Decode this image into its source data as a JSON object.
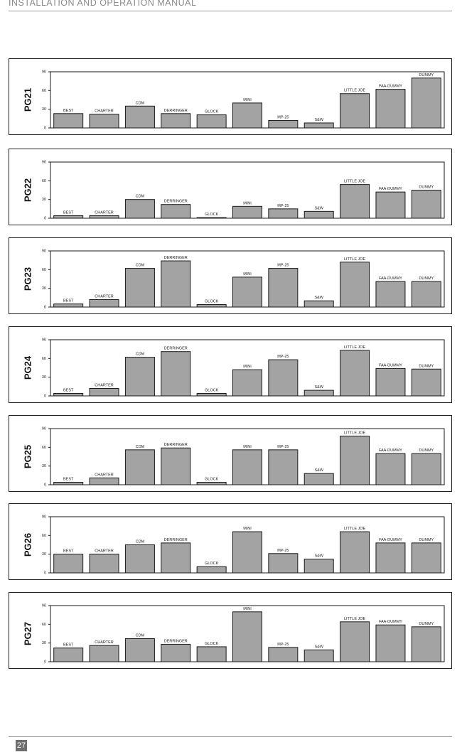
{
  "header": {
    "title": "INSTALLATION AND OPERATION MANUAL"
  },
  "footer": {
    "page_number": "27"
  },
  "colors": {
    "bar_fill": "#a3a3a3",
    "bar_stroke": "#1a1a1a",
    "frame": "#222222",
    "rule": "#9a9a9a"
  },
  "chart_data": [
    {
      "type": "bar",
      "ylabel": "PG21",
      "ylim": [
        0,
        90
      ],
      "yticks": [
        "0",
        "30",
        "60",
        "90"
      ],
      "grid": false,
      "categories": [
        "BEST",
        "CHARTER",
        "CDM",
        "DERRINGER",
        "GLOCK",
        "MINI",
        "MP-25",
        "S&W",
        "LITTLE JOE",
        "FAA-DUMMY",
        "DUMMY"
      ],
      "values": [
        23,
        22,
        35,
        23,
        21,
        40,
        12,
        8,
        55,
        62,
        80
      ]
    },
    {
      "type": "bar",
      "ylabel": "PG22",
      "ylim": [
        0,
        90
      ],
      "yticks": [
        "0",
        "30",
        "60",
        "90"
      ],
      "grid": false,
      "categories": [
        "BEST",
        "CHARTER",
        "CDM",
        "DERRINGER",
        "GLOCK",
        "MINI",
        "MP-25",
        "S&W",
        "LITTLE JOE",
        "FAA-DUMMY",
        "DUMMY"
      ],
      "values": [
        4,
        4,
        30,
        22,
        1,
        19,
        15,
        11,
        54,
        42,
        45
      ]
    },
    {
      "type": "bar",
      "ylabel": "PG23",
      "ylim": [
        0,
        90
      ],
      "yticks": [
        "0",
        "30",
        "60",
        "90"
      ],
      "grid": false,
      "categories": [
        "BEST",
        "CHARTER",
        "CDM",
        "DERRINGER",
        "GLOCK",
        "MINI",
        "MP-25",
        "S&W",
        "LITTLE JOE",
        "FAA-DUMMY",
        "DUMMY"
      ],
      "values": [
        5,
        12,
        62,
        74,
        4,
        48,
        62,
        10,
        72,
        41,
        41
      ]
    },
    {
      "type": "bar",
      "ylabel": "PG24",
      "ylim": [
        0,
        90
      ],
      "yticks": [
        "0",
        "30",
        "60",
        "90"
      ],
      "grid": false,
      "categories": [
        "BEST",
        "CHARTER",
        "CDM",
        "DERRINGER",
        "GLOCK",
        "MINI",
        "MP-25",
        "S&W",
        "LITTLE JOE",
        "FAA-DUMMY",
        "DUMMY"
      ],
      "values": [
        4,
        12,
        62,
        71,
        4,
        42,
        58,
        9,
        73,
        44,
        43
      ]
    },
    {
      "type": "bar",
      "ylabel": "PG25",
      "ylim": [
        0,
        90
      ],
      "yticks": [
        "0",
        "30",
        "60",
        "90"
      ],
      "grid": false,
      "categories": [
        "BEST",
        "CHARTER",
        "CDM",
        "DERRINGER",
        "GLOCK",
        "MINI",
        "MP-25",
        "S&W",
        "LITTLE JOE",
        "FAA-DUMMY",
        "DUMMY"
      ],
      "values": [
        4,
        11,
        56,
        59,
        4,
        56,
        56,
        18,
        78,
        50,
        50
      ]
    },
    {
      "type": "bar",
      "ylabel": "PG26",
      "ylim": [
        0,
        90
      ],
      "yticks": [
        "0",
        "30",
        "60",
        "90"
      ],
      "grid": false,
      "categories": [
        "BEST",
        "CHARTER",
        "CDM",
        "DERRINGER",
        "GLOCK",
        "MINI",
        "MP-25",
        "S&W",
        "LITTLE JOE",
        "FAA-DUMMY",
        "DUMMY"
      ],
      "values": [
        30,
        30,
        45,
        48,
        10,
        66,
        31,
        22,
        66,
        48,
        48
      ]
    },
    {
      "type": "bar",
      "ylabel": "PG27",
      "ylim": [
        0,
        90
      ],
      "yticks": [
        "0",
        "30",
        "60",
        "90"
      ],
      "grid": false,
      "categories": [
        "BEST",
        "CHARTER",
        "CDM",
        "DERRINGER",
        "GLOCK",
        "MINI",
        "MP-25",
        "S&W",
        "LITTLE JOE",
        "FAA-DUMMY",
        "DUMMY"
      ],
      "values": [
        22,
        26,
        37,
        28,
        24,
        80,
        23,
        19,
        64,
        59,
        56
      ]
    }
  ]
}
